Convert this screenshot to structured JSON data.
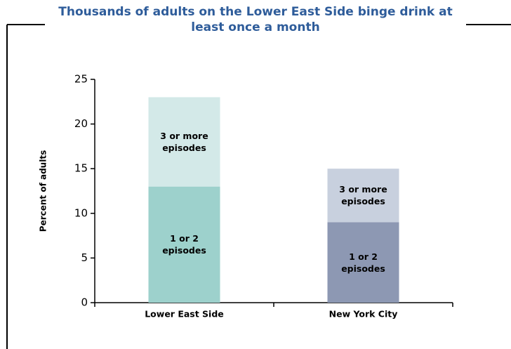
{
  "chart_data": {
    "type": "stacked_bar",
    "title": "Thousands of adults on the Lower East Side binge drink at least once a month",
    "ylabel": "Percent of adults",
    "categories": [
      "Lower East Side",
      "New York City"
    ],
    "series": [
      {
        "name": "1 or 2 episodes",
        "colors": [
          "#9dd1cc",
          "#8d98b3"
        ],
        "values": [
          13,
          9
        ]
      },
      {
        "name": "3 or more episodes",
        "colors": [
          "#d3e9e8",
          "#c8d0de"
        ],
        "values": [
          10,
          6
        ]
      }
    ],
    "ylim": [
      0,
      25
    ],
    "yticks": [
      0,
      5,
      10,
      15,
      20,
      25
    ]
  }
}
